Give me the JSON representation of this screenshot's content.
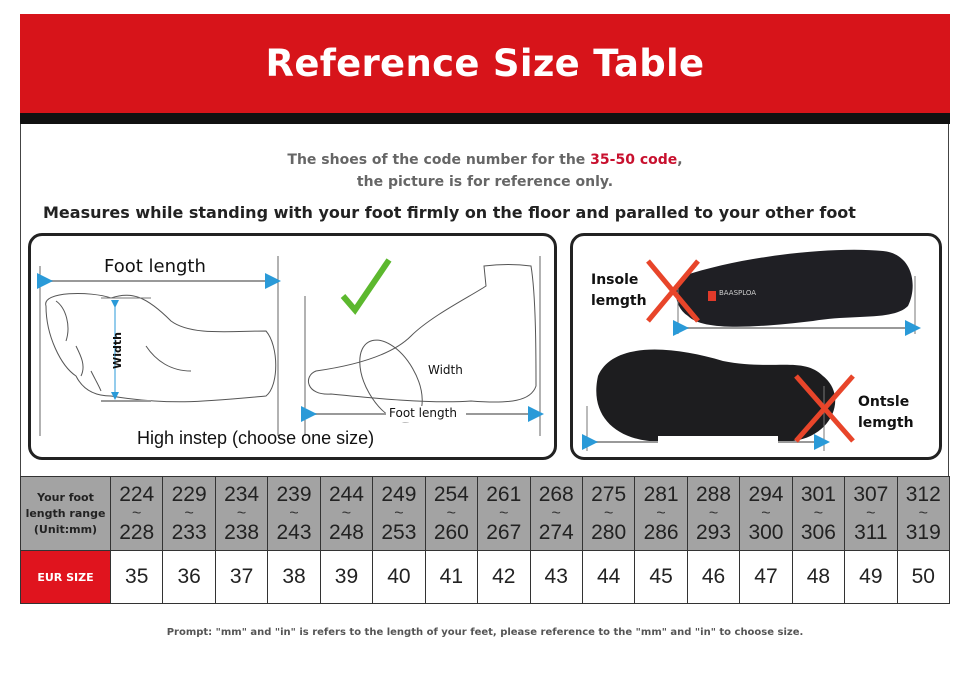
{
  "header": {
    "title": "Reference Size Table"
  },
  "note": {
    "line1_prefix": "The shoes of the code number for the ",
    "line1_highlight": "35-50 code",
    "line1_suffix": ",",
    "line2": "the picture is for reference only."
  },
  "instruction": "Measures while standing with your foot firmly on the floor and paralled to your other foot",
  "left_panel": {
    "foot_length_top": "Foot length",
    "width_vertical": "Width",
    "width_side": "Width",
    "foot_length_side": "Foot length",
    "caption": "High instep  (choose one size)"
  },
  "right_panel": {
    "insole_label_1": "Insole",
    "insole_label_2": "lemgth",
    "brand": "BAASPLOA",
    "outsole_label_1": "Ontsle",
    "outsole_label_2": "lemgth"
  },
  "table": {
    "length_header": [
      "Your foot",
      "length range",
      "(Unit:mm)"
    ],
    "eur_header": "EUR SIZE",
    "ranges": [
      {
        "from": "224",
        "to": "228"
      },
      {
        "from": "229",
        "to": "233"
      },
      {
        "from": "234",
        "to": "238"
      },
      {
        "from": "239",
        "to": "243"
      },
      {
        "from": "244",
        "to": "248"
      },
      {
        "from": "249",
        "to": "253"
      },
      {
        "from": "254",
        "to": "260"
      },
      {
        "from": "261",
        "to": "267"
      },
      {
        "from": "268",
        "to": "274"
      },
      {
        "from": "275",
        "to": "280"
      },
      {
        "from": "281",
        "to": "286"
      },
      {
        "from": "288",
        "to": "293"
      },
      {
        "from": "294",
        "to": "300"
      },
      {
        "from": "301",
        "to": "306"
      },
      {
        "from": "307",
        "to": "311"
      },
      {
        "from": "312",
        "to": "319"
      }
    ],
    "tilde": "~",
    "eur": [
      "35",
      "36",
      "37",
      "38",
      "39",
      "40",
      "41",
      "42",
      "43",
      "44",
      "45",
      "46",
      "47",
      "48",
      "49",
      "50"
    ]
  },
  "prompt": "Prompt: \"mm\" and \"in\" is refers to the length of your feet, please reference to the \"mm\" and \"in\" to choose size.",
  "colors": {
    "header_red": "#d7141a",
    "highlight_red": "#c8102e",
    "table_gray": "#a3a3a3",
    "arrow_blue": "#2a9ad8",
    "check_green": "#5cb82e",
    "cross_red": "#e8452a"
  }
}
